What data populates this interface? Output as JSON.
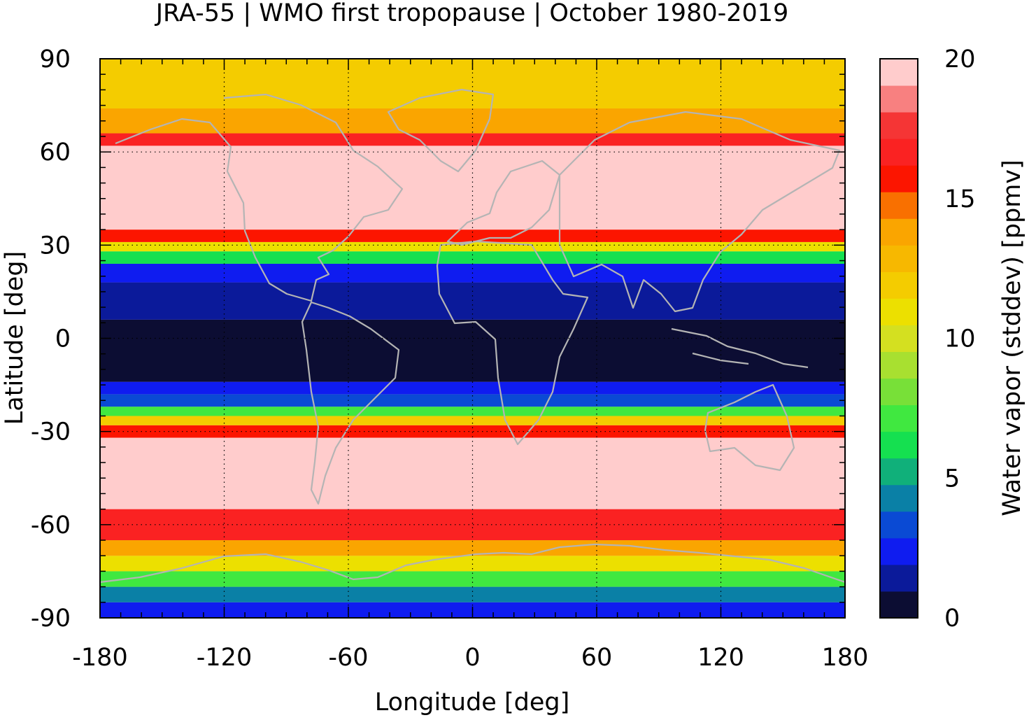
{
  "chart_data": {
    "type": "heatmap",
    "title": "JRA-55 | WMO first tropopause | October 1980-2019",
    "xlabel": "Longitude [deg]",
    "ylabel": "Latitude [deg]",
    "xlim": [
      -180,
      180
    ],
    "ylim": [
      -90,
      90
    ],
    "xticks": [
      -180,
      -120,
      -60,
      0,
      60,
      120,
      180
    ],
    "yticks": [
      90,
      60,
      30,
      0,
      -30,
      -60,
      -90
    ],
    "grid": true,
    "colorbar": {
      "label": "Water vapor (stddev) [ppmv]",
      "range": [
        0,
        20
      ],
      "ticks": [
        0,
        5,
        10,
        15,
        20
      ],
      "colors": [
        "#0c0d33",
        "#0b1a9a",
        "#0f1cf0",
        "#0a4ad4",
        "#0a80a6",
        "#10b07a",
        "#15e050",
        "#40e840",
        "#78e038",
        "#a8e030",
        "#d4e020",
        "#ece000",
        "#f4cc00",
        "#f7b800",
        "#faa500",
        "#f97000",
        "#fc1500",
        "#fa2222",
        "#f53535",
        "#f88080",
        "#ffcccc"
      ]
    },
    "zonal_band_values_ppmv": [
      {
        "lat": [
          -90,
          -85
        ],
        "value": 2.5
      },
      {
        "lat": [
          -85,
          -80
        ],
        "value": 4.5
      },
      {
        "lat": [
          -80,
          -75
        ],
        "value": 7.5
      },
      {
        "lat": [
          -75,
          -70
        ],
        "value": 11.5
      },
      {
        "lat": [
          -70,
          -65
        ],
        "value": 14
      },
      {
        "lat": [
          -65,
          -55
        ],
        "value": 17
      },
      {
        "lat": [
          -55,
          -32
        ],
        "value": 20
      },
      {
        "lat": [
          -32,
          -28
        ],
        "value": 16.5
      },
      {
        "lat": [
          -28,
          -25
        ],
        "value": 12
      },
      {
        "lat": [
          -25,
          -22
        ],
        "value": 7
      },
      {
        "lat": [
          -22,
          -18
        ],
        "value": 3.5
      },
      {
        "lat": [
          -18,
          -14
        ],
        "value": 2
      },
      {
        "lat": [
          -14,
          6
        ],
        "value": 0.5
      },
      {
        "lat": [
          6,
          18
        ],
        "value": 1.5
      },
      {
        "lat": [
          18,
          24
        ],
        "value": 2.5
      },
      {
        "lat": [
          24,
          28
        ],
        "value": 6
      },
      {
        "lat": [
          28,
          31
        ],
        "value": 11
      },
      {
        "lat": [
          31,
          35
        ],
        "value": 16.5
      },
      {
        "lat": [
          35,
          62
        ],
        "value": 20
      },
      {
        "lat": [
          62,
          66
        ],
        "value": 17
      },
      {
        "lat": [
          66,
          74
        ],
        "value": 14
      },
      {
        "lat": [
          74,
          90
        ],
        "value": 12
      }
    ],
    "overlay": "coastlines"
  }
}
